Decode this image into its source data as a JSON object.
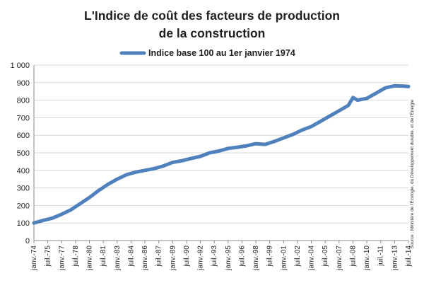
{
  "chart_data": {
    "type": "line",
    "title": [
      "L'Indice de coût des facteurs de production",
      "de la construction"
    ],
    "series": [
      {
        "name": "Indice base 100 au 1er janvier 1974",
        "color": "#4f81bd",
        "points": [
          [
            "janv.-74",
            100
          ],
          [
            "janv.-75",
            115
          ],
          [
            "janv.-76",
            128
          ],
          [
            "janv.-77",
            150
          ],
          [
            "janv.-78",
            175
          ],
          [
            "janv.-79",
            210
          ],
          [
            "janv.-80",
            245
          ],
          [
            "janv.-81",
            285
          ],
          [
            "janv.-82",
            320
          ],
          [
            "janv.-83",
            350
          ],
          [
            "janv.-84",
            375
          ],
          [
            "janv.-85",
            390
          ],
          [
            "janv.-86",
            400
          ],
          [
            "janv.-87",
            410
          ],
          [
            "janv.-88",
            425
          ],
          [
            "janv.-89",
            445
          ],
          [
            "janv.-90",
            455
          ],
          [
            "janv.-91",
            468
          ],
          [
            "janv.-92",
            480
          ],
          [
            "janv.-93",
            500
          ],
          [
            "janv.-94",
            510
          ],
          [
            "janv.-95",
            525
          ],
          [
            "janv.-96",
            532
          ],
          [
            "janv.-97",
            540
          ],
          [
            "janv.-98",
            552
          ],
          [
            "janv.-99",
            548
          ],
          [
            "janv.-00",
            565
          ],
          [
            "janv.-01",
            585
          ],
          [
            "janv.-02",
            605
          ],
          [
            "janv.-03",
            630
          ],
          [
            "janv.-04",
            650
          ],
          [
            "janv.-05",
            680
          ],
          [
            "janv.-06",
            710
          ],
          [
            "janv.-07",
            740
          ],
          [
            "janv.-08",
            770
          ],
          [
            "juil.-08",
            815
          ],
          [
            "janv.-09",
            800
          ],
          [
            "janv.-10",
            810
          ],
          [
            "janv.-11",
            840
          ],
          [
            "janv.-12",
            870
          ],
          [
            "janv.-13",
            882
          ],
          [
            "janv.-14",
            880
          ],
          [
            "juil.-14",
            878
          ]
        ]
      }
    ],
    "x_tick_labels": [
      "janv.-74",
      "juil.-75",
      "janv.-77",
      "juil.-78",
      "janv.-80",
      "juil.-81",
      "janv.-83",
      "juil.-84",
      "janv.-86",
      "juil.-87",
      "janv.-89",
      "juil.-90",
      "janv.-92",
      "juil.-93",
      "janv.-95",
      "juil.-96",
      "janv.-98",
      "juil.-99",
      "janv.-01",
      "juil.-02",
      "janv.-04",
      "juil.-05",
      "janv.-07",
      "juil.-08",
      "janv.-10",
      "juil.-11",
      "janv.-13",
      "juil.-14"
    ],
    "y_ticks": [
      0,
      100,
      200,
      300,
      400,
      500,
      600,
      700,
      800,
      900,
      1000
    ],
    "y_tick_labels": [
      "0",
      "100",
      "200",
      "300",
      "400",
      "500",
      "600",
      "700",
      "800",
      "900",
      "1 000"
    ],
    "ylim": [
      0,
      1000
    ],
    "grid": "horizontal",
    "legend_position": "top",
    "source": "Source : Ministère de l'Écologie, du Développement durable, et de l'Énergie"
  }
}
